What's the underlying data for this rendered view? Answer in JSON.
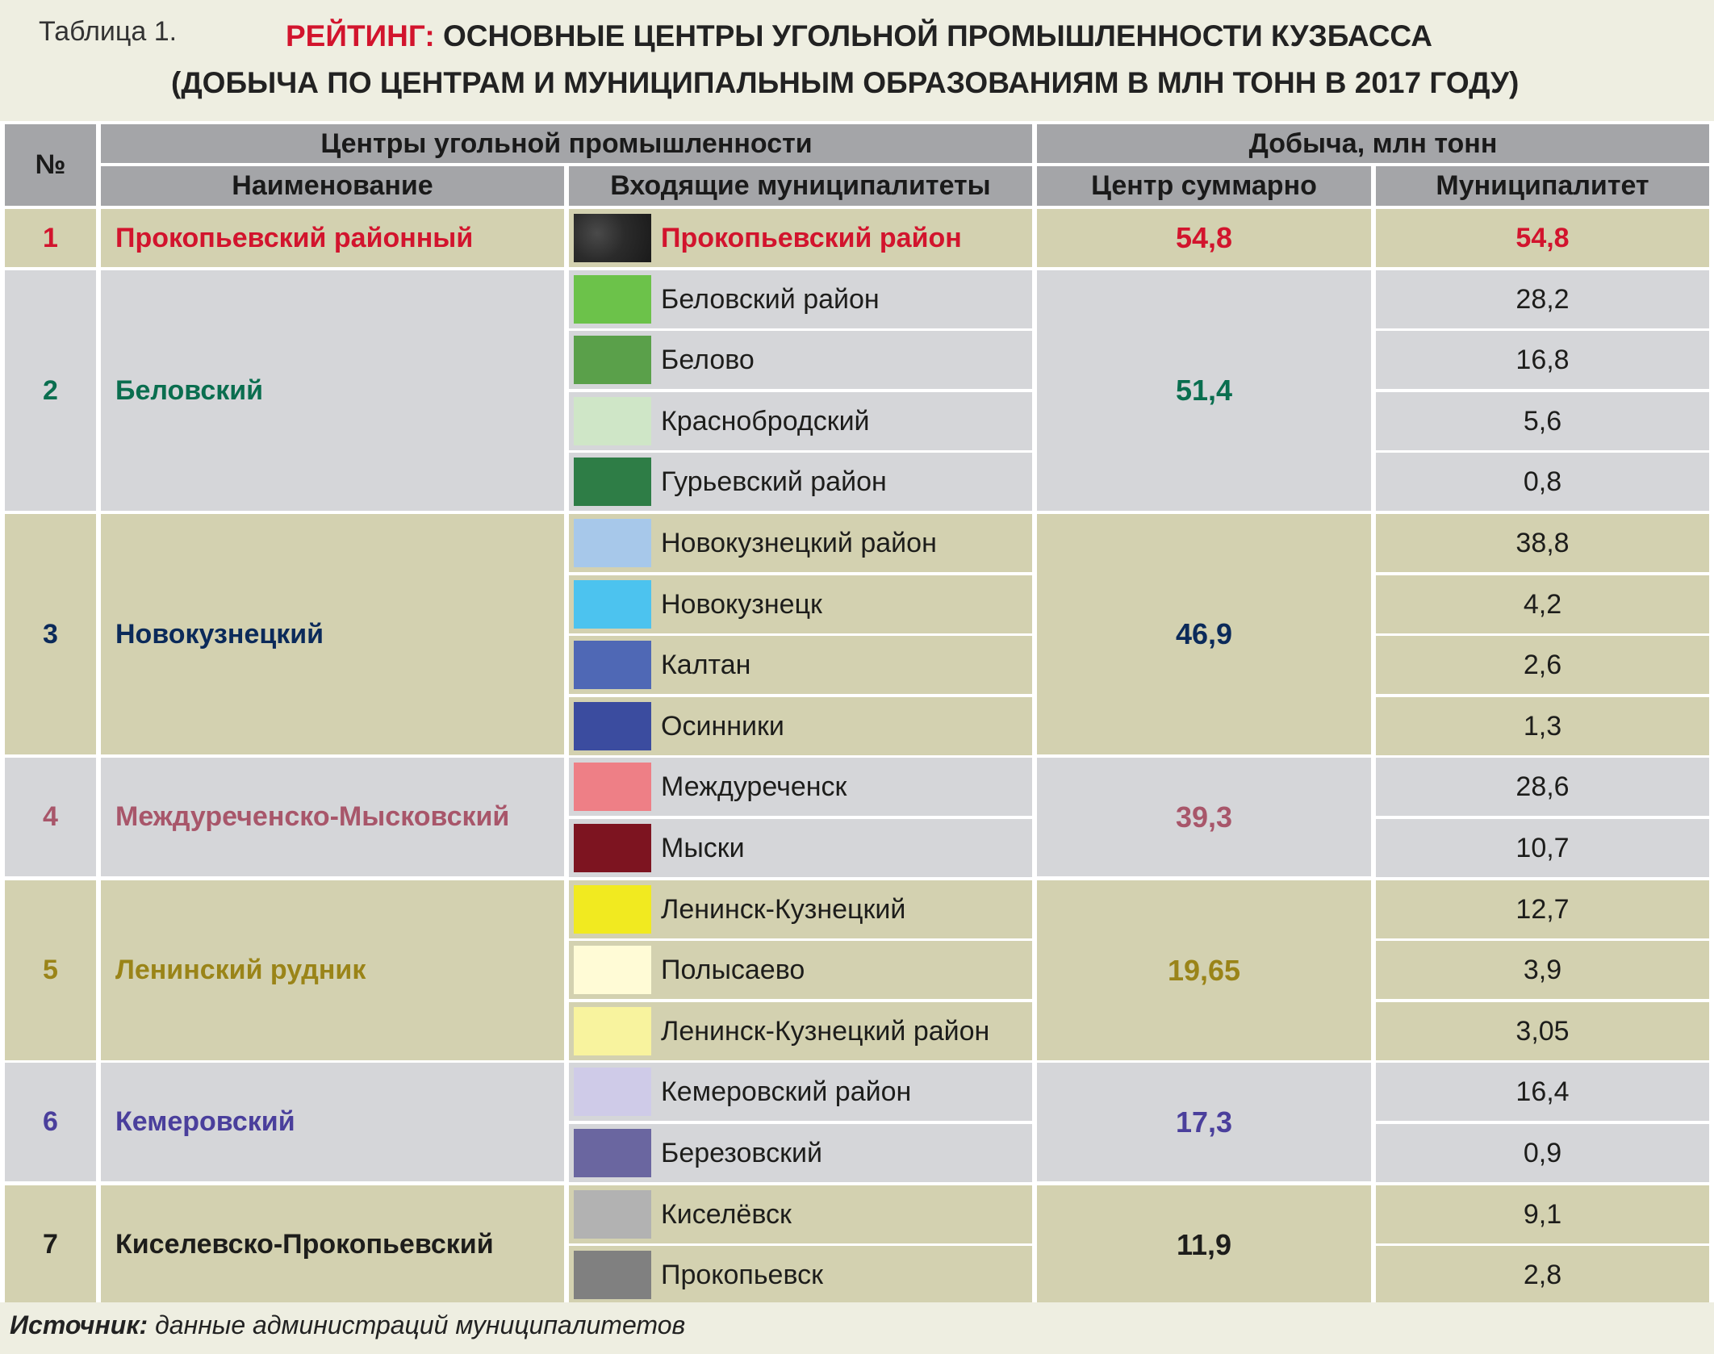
{
  "header": {
    "table_label": "Таблица 1.",
    "title_accent": "РЕЙТИНГ:",
    "title_rest": " ОСНОВНЫЕ ЦЕНТРЫ УГОЛЬНОЙ ПРОМЫШЛЕННОСТИ КУЗБАССА",
    "subtitle": "(ДОБЫЧА ПО ЦЕНТРАМ И МУНИЦИПАЛЬНЫМ ОБРАЗОВАНИЯМ В МЛН ТОНН В 2017 ГОДУ)",
    "accent_color": "#d2142d"
  },
  "table": {
    "group_headers": {
      "centers": "Центры угольной промышленности",
      "production": "Добыча, млн тонн"
    },
    "columns": {
      "num": "№",
      "name": "Наименование",
      "municipalities": "Входящие муниципалитеты",
      "total": "Центр суммарно",
      "municipality_value": "Муниципалитет"
    },
    "rows": [
      {
        "num": "1",
        "name": "Прокопьевский районный",
        "total": "54,8",
        "color": "#d2142d",
        "shade": "tan",
        "highlight": true,
        "municipalities": [
          {
            "name": "Прокопьевский район",
            "value": "54,8",
            "swatch": "#2e2e2e"
          }
        ]
      },
      {
        "num": "2",
        "name": "Беловский",
        "total": "51,4",
        "color": "#0a6e4f",
        "shade": "gray",
        "highlight": false,
        "municipalities": [
          {
            "name": "Беловский район",
            "value": "28,2",
            "swatch": "#6cc24a"
          },
          {
            "name": "Белово",
            "value": "16,8",
            "swatch": "#5aa04a"
          },
          {
            "name": "Краснобродский",
            "value": "5,6",
            "swatch": "#cfe6c7"
          },
          {
            "name": "Гурьевский район",
            "value": "0,8",
            "swatch": "#2e7d46"
          }
        ]
      },
      {
        "num": "3",
        "name": "Новокузнецкий",
        "total": "46,9",
        "color": "#0b2a5a",
        "shade": "tan",
        "highlight": false,
        "municipalities": [
          {
            "name": "Новокузнецкий район",
            "value": "38,8",
            "swatch": "#a7c8ea"
          },
          {
            "name": "Новокузнецк",
            "value": "4,2",
            "swatch": "#4cc3ef"
          },
          {
            "name": "Калтан",
            "value": "2,6",
            "swatch": "#4f68b5"
          },
          {
            "name": "Осинники",
            "value": "1,3",
            "swatch": "#3b4c9f"
          }
        ]
      },
      {
        "num": "4",
        "name": "Междуреченско-Мысковский",
        "total": "39,3",
        "color": "#a8566a",
        "shade": "gray",
        "highlight": false,
        "municipalities": [
          {
            "name": "Междуреченск",
            "value": "28,6",
            "swatch": "#ee7f86"
          },
          {
            "name": "Мыски",
            "value": "10,7",
            "swatch": "#7d1420"
          }
        ]
      },
      {
        "num": "5",
        "name": "Ленинский рудник",
        "total": "19,65",
        "color": "#9a8418",
        "shade": "tan",
        "highlight": false,
        "municipalities": [
          {
            "name": "Ленинск-Кузнецкий",
            "value": "12,7",
            "swatch": "#f1ea20"
          },
          {
            "name": "Полысаево",
            "value": "3,9",
            "swatch": "#fffbd6"
          },
          {
            "name": "Ленинск-Кузнецкий район",
            "value": "3,05",
            "swatch": "#f8f39e"
          }
        ]
      },
      {
        "num": "6",
        "name": "Кемеровский",
        "total": "17,3",
        "color": "#4a3f9c",
        "shade": "gray",
        "highlight": false,
        "municipalities": [
          {
            "name": "Кемеровский район",
            "value": "16,4",
            "swatch": "#cfcbe8"
          },
          {
            "name": "Березовский",
            "value": "0,9",
            "swatch": "#6a66a0"
          }
        ]
      },
      {
        "num": "7",
        "name": "Киселевско-Прокопьевский",
        "total": "11,9",
        "color": "#1d1d1b",
        "shade": "tan",
        "highlight": false,
        "municipalities": [
          {
            "name": "Киселёвск",
            "value": "9,1",
            "swatch": "#b2b2b2"
          },
          {
            "name": "Прокопьевск",
            "value": "2,8",
            "swatch": "#808080"
          }
        ]
      }
    ]
  },
  "footer": {
    "source_label": "Источник:",
    "source_text": " данные администраций муниципалитетов"
  }
}
